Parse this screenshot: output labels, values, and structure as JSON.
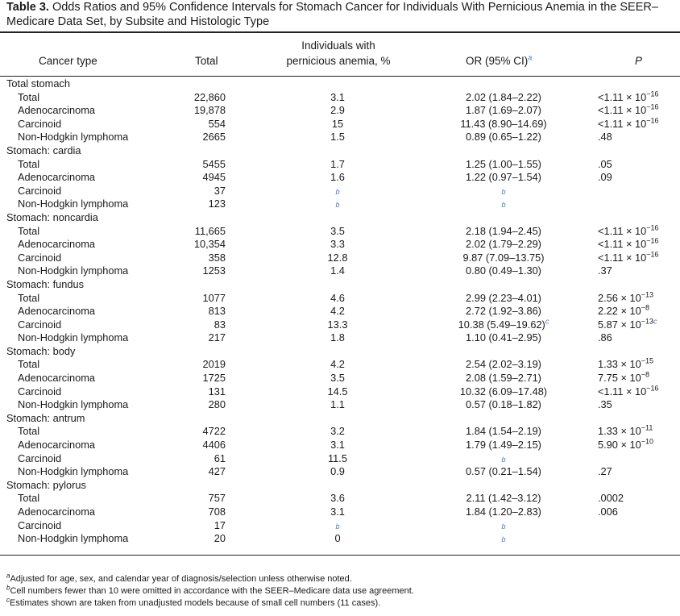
{
  "title": {
    "label": "Table 3.",
    "text": "Odds Ratios and 95% Confidence Intervals for Stomach Cancer for Individuals With Pernicious Anemia in the SEER–Medicare Data Set, by Subsite and Histologic Type"
  },
  "header": {
    "cancer_type": "Cancer type",
    "total": "Total",
    "pa_line1": "Individuals with",
    "pa_line2": "pernicious anemia, %",
    "or": "OR (95% CI)",
    "or_mark": "a",
    "p": "P"
  },
  "rows": [
    {
      "kind": "group",
      "label": "Total stomach"
    },
    {
      "kind": "row",
      "label": "Total",
      "total": "22,860",
      "pct": "3.1",
      "or": "2.02 (1.84–2.22)",
      "p_base": "<1.11 × 10",
      "p_exp": "−16"
    },
    {
      "kind": "row",
      "label": "Adenocarcinoma",
      "total": "19,878",
      "pct": "2.9",
      "or": "1.87 (1.69–2.07)",
      "p_base": "<1.11 × 10",
      "p_exp": "−16"
    },
    {
      "kind": "row",
      "label": "Carcinoid",
      "total": "554",
      "pct": "15",
      "or": "11.43 (8.90–14.69)",
      "p_base": "<1.11 × 10",
      "p_exp": "−16"
    },
    {
      "kind": "row",
      "label": "Non-Hodgkin lymphoma",
      "total": "2665",
      "pct": "1.5",
      "or": "0.89 (0.65–1.22)",
      "p_base": ".48"
    },
    {
      "kind": "group",
      "label": "Stomach: cardia"
    },
    {
      "kind": "row",
      "label": "Total",
      "total": "5455",
      "pct": "1.7",
      "or": "1.25 (1.00–1.55)",
      "p_base": ".05"
    },
    {
      "kind": "row",
      "label": "Adenocarcinoma",
      "total": "4945",
      "pct": "1.6",
      "or": "1.22 (0.97–1.54)",
      "p_base": ".09"
    },
    {
      "kind": "row",
      "label": "Carcinoid",
      "total": "37",
      "pct_fn": "b",
      "or_fn": "b"
    },
    {
      "kind": "row",
      "label": "Non-Hodgkin lymphoma",
      "total": "123",
      "pct_fn": "b",
      "or_fn": "b"
    },
    {
      "kind": "group",
      "label": "Stomach: noncardia"
    },
    {
      "kind": "row",
      "label": "Total",
      "total": "11,665",
      "pct": "3.5",
      "or": "2.18 (1.94–2.45)",
      "p_base": "<1.11 × 10",
      "p_exp": "−16"
    },
    {
      "kind": "row",
      "label": "Adenocarcinoma",
      "total": "10,354",
      "pct": "3.3",
      "or": "2.02 (1.79–2.29)",
      "p_base": "<1.11 × 10",
      "p_exp": "−16"
    },
    {
      "kind": "row",
      "label": "Carcinoid",
      "total": "358",
      "pct": "12.8",
      "or": "9.87 (7.09–13.75)",
      "p_base": "<1.11 × 10",
      "p_exp": "−16"
    },
    {
      "kind": "row",
      "label": "Non-Hodgkin lymphoma",
      "total": "1253",
      "pct": "1.4",
      "or": "0.80 (0.49–1.30)",
      "p_base": ".37"
    },
    {
      "kind": "group",
      "label": "Stomach: fundus"
    },
    {
      "kind": "row",
      "label": "Total",
      "total": "1077",
      "pct": "4.6",
      "or": "2.99 (2.23–4.01)",
      "p_base": "2.56 × 10",
      "p_exp": "−13"
    },
    {
      "kind": "row",
      "label": "Adenocarcinoma",
      "total": "813",
      "pct": "4.2",
      "or": "2.72 (1.92–3.86)",
      "p_base": "2.22 × 10",
      "p_exp": "−8"
    },
    {
      "kind": "row",
      "label": "Carcinoid",
      "total": "83",
      "pct": "13.3",
      "or": "10.38 (5.49–19.62)",
      "or_mark": "c",
      "p_base": "5.87 × 10",
      "p_exp": "−13",
      "p_mark": "c"
    },
    {
      "kind": "row",
      "label": "Non-Hodgkin lymphoma",
      "total": "217",
      "pct": "1.8",
      "or": "1.10 (0.41–2.95)",
      "p_base": ".86"
    },
    {
      "kind": "group",
      "label": "Stomach: body"
    },
    {
      "kind": "row",
      "label": "Total",
      "total": "2019",
      "pct": "4.2",
      "or": "2.54 (2.02–3.19)",
      "p_base": "1.33 × 10",
      "p_exp": "−15"
    },
    {
      "kind": "row",
      "label": "Adenocarcinoma",
      "total": "1725",
      "pct": "3.5",
      "or": "2.08 (1.59–2.71)",
      "p_base": "7.75 × 10",
      "p_exp": "−8"
    },
    {
      "kind": "row",
      "label": "Carcinoid",
      "total": "131",
      "pct": "14.5",
      "or": "10.32 (6.09–17.48)",
      "p_base": "<1.11 × 10",
      "p_exp": "−16"
    },
    {
      "kind": "row",
      "label": "Non-Hodgkin lymphoma",
      "total": "280",
      "pct": "1.1",
      "or": "0.57 (0.18–1.82)",
      "p_base": ".35"
    },
    {
      "kind": "group",
      "label": "Stomach: antrum"
    },
    {
      "kind": "row",
      "label": "Total",
      "total": "4722",
      "pct": "3.2",
      "or": "1.84 (1.54–2.19)",
      "p_base": "1.33 × 10",
      "p_exp": "−11"
    },
    {
      "kind": "row",
      "label": "Adenocarcinoma",
      "total": "4406",
      "pct": "3.1",
      "or": "1.79 (1.49–2.15)",
      "p_base": "5.90 × 10",
      "p_exp": "−10"
    },
    {
      "kind": "row",
      "label": "Carcinoid",
      "total": "61",
      "pct": "11.5",
      "or_fn": "b"
    },
    {
      "kind": "row",
      "label": "Non-Hodgkin lymphoma",
      "total": "427",
      "pct": "0.9",
      "or": "0.57 (0.21–1.54)",
      "p_base": ".27"
    },
    {
      "kind": "group",
      "label": "Stomach: pylorus"
    },
    {
      "kind": "row",
      "label": "Total",
      "total": "757",
      "pct": "3.6",
      "or": "2.11 (1.42–3.12)",
      "p_base": ".0002"
    },
    {
      "kind": "row",
      "label": "Adenocarcinoma",
      "total": "708",
      "pct": "3.1",
      "or": "1.84 (1.20–2.83)",
      "p_base": ".006"
    },
    {
      "kind": "row",
      "label": "Carcinoid",
      "total": "17",
      "pct_fn": "b",
      "or_fn": "b"
    },
    {
      "kind": "row",
      "label": "Non-Hodgkin lymphoma",
      "total": "20",
      "pct": "0",
      "or_fn": "b"
    }
  ],
  "footnotes": [
    {
      "mark": "a",
      "text": "Adjusted for age, sex, and calendar year of diagnosis/selection unless otherwise noted."
    },
    {
      "mark": "b",
      "text": "Cell numbers fewer than 10 were omitted in accordance with the SEER–Medicare data use agreement."
    },
    {
      "mark": "c",
      "text": "Estimates shown are taken from unadjusted models because of small cell numbers (11 cases)."
    }
  ],
  "colors": {
    "footnote_mark": "#3a7fc2",
    "rule": "#222222"
  }
}
